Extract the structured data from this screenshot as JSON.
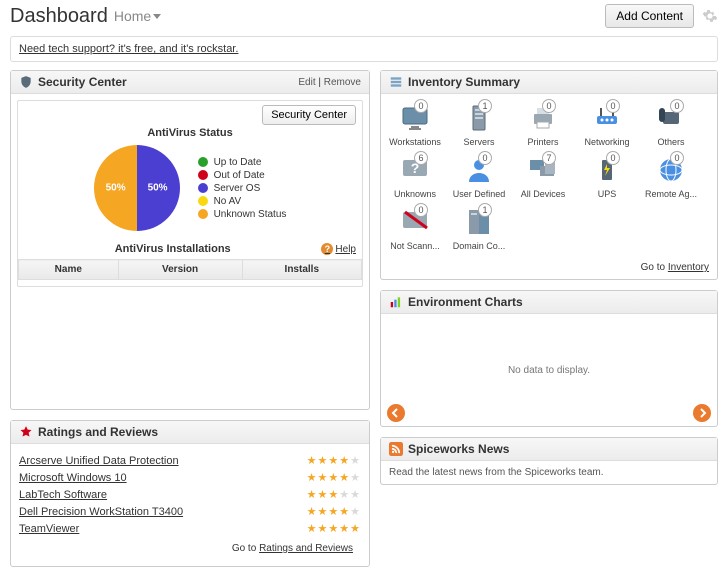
{
  "header": {
    "title": "Dashboard",
    "crumb": "Home",
    "add_content": "Add Content"
  },
  "banner": {
    "text": "Need tech support? it's free, and it's rockstar."
  },
  "security": {
    "title": "Security Center",
    "edit": "Edit",
    "remove": "Remove",
    "sec_btn": "Security Center",
    "chart_title": "AntiVirus Status",
    "pie": {
      "type": "pie",
      "slices": [
        {
          "label": "50%",
          "value": 50,
          "color": "#f5a623"
        },
        {
          "label": "50%",
          "value": 50,
          "color": "#4b3fd1"
        }
      ],
      "diameter": 86,
      "bg": "#ffffff"
    },
    "legend": [
      {
        "color": "#2aa02a",
        "label": "Up to Date"
      },
      {
        "color": "#d0021b",
        "label": "Out of Date"
      },
      {
        "color": "#4b3fd1",
        "label": "Server OS"
      },
      {
        "color": "#f8d90f",
        "label": "No AV"
      },
      {
        "color": "#f5a623",
        "label": "Unknown Status"
      }
    ],
    "installs_title": "AntiVirus Installations",
    "help": "Help",
    "table_cols": [
      "Name",
      "Version",
      "Installs"
    ]
  },
  "inventory": {
    "title": "Inventory Summary",
    "go_label": "Go to",
    "go_link": "Inventory",
    "items": [
      {
        "label": "Workstations",
        "count": 0,
        "icon": "monitor"
      },
      {
        "label": "Servers",
        "count": 1,
        "icon": "server"
      },
      {
        "label": "Printers",
        "count": 0,
        "icon": "printer"
      },
      {
        "label": "Networking",
        "count": 0,
        "icon": "router"
      },
      {
        "label": "Others",
        "count": 0,
        "icon": "phone"
      },
      {
        "label": "Unknowns",
        "count": 6,
        "icon": "question"
      },
      {
        "label": "User Defined",
        "count": 0,
        "icon": "user"
      },
      {
        "label": "All Devices",
        "count": 7,
        "icon": "devices"
      },
      {
        "label": "UPS",
        "count": 0,
        "icon": "ups"
      },
      {
        "label": "Remote Ag...",
        "count": 0,
        "icon": "globe"
      },
      {
        "label": "Not Scann...",
        "count": 0,
        "icon": "noscan"
      },
      {
        "label": "Domain Co...",
        "count": 1,
        "icon": "servers"
      }
    ]
  },
  "env": {
    "title": "Environment Charts",
    "empty": "No data to display."
  },
  "ratings": {
    "title": "Ratings and Reviews",
    "go_label": "Go to",
    "go_link": "Ratings and Reviews",
    "star_colors": {
      "filled": "#f5a623",
      "empty": "#d9d9d9"
    },
    "items": [
      {
        "name": "Arcserve Unified Data Protection",
        "stars": 4
      },
      {
        "name": "Microsoft Windows 10",
        "stars": 4
      },
      {
        "name": "LabTech Software",
        "stars": 3
      },
      {
        "name": "Dell Precision WorkStation T3400",
        "stars": 4
      },
      {
        "name": "TeamViewer",
        "stars": 5
      }
    ]
  },
  "news": {
    "title": "Spiceworks News",
    "body": "Read the latest news from the Spiceworks team."
  },
  "colors": {
    "accent": "#ea7a2e",
    "header_text": "#333333",
    "panel_border": "#cccccc"
  }
}
